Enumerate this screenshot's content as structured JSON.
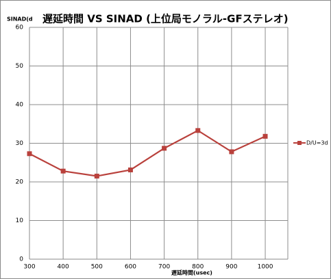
{
  "chart_data": {
    "type": "line",
    "title": "遅延時間 VS SINAD (上位局モノラル-GFステレオ)",
    "y_label": "SINAD(d",
    "x_label": "遅延時間(usec)",
    "categories": [
      "300",
      "400",
      "500",
      "600",
      "700",
      "800",
      "900",
      "1000"
    ],
    "series": [
      {
        "name": "D/U=3d",
        "color": "#b9413c",
        "values": [
          27.3,
          22.8,
          21.5,
          23.1,
          28.7,
          33.3,
          27.8,
          31.8
        ]
      }
    ],
    "ylim": [
      0,
      60
    ],
    "yticks": [
      0,
      10,
      20,
      30,
      40,
      50,
      60
    ],
    "grid": true,
    "legend": "right"
  }
}
